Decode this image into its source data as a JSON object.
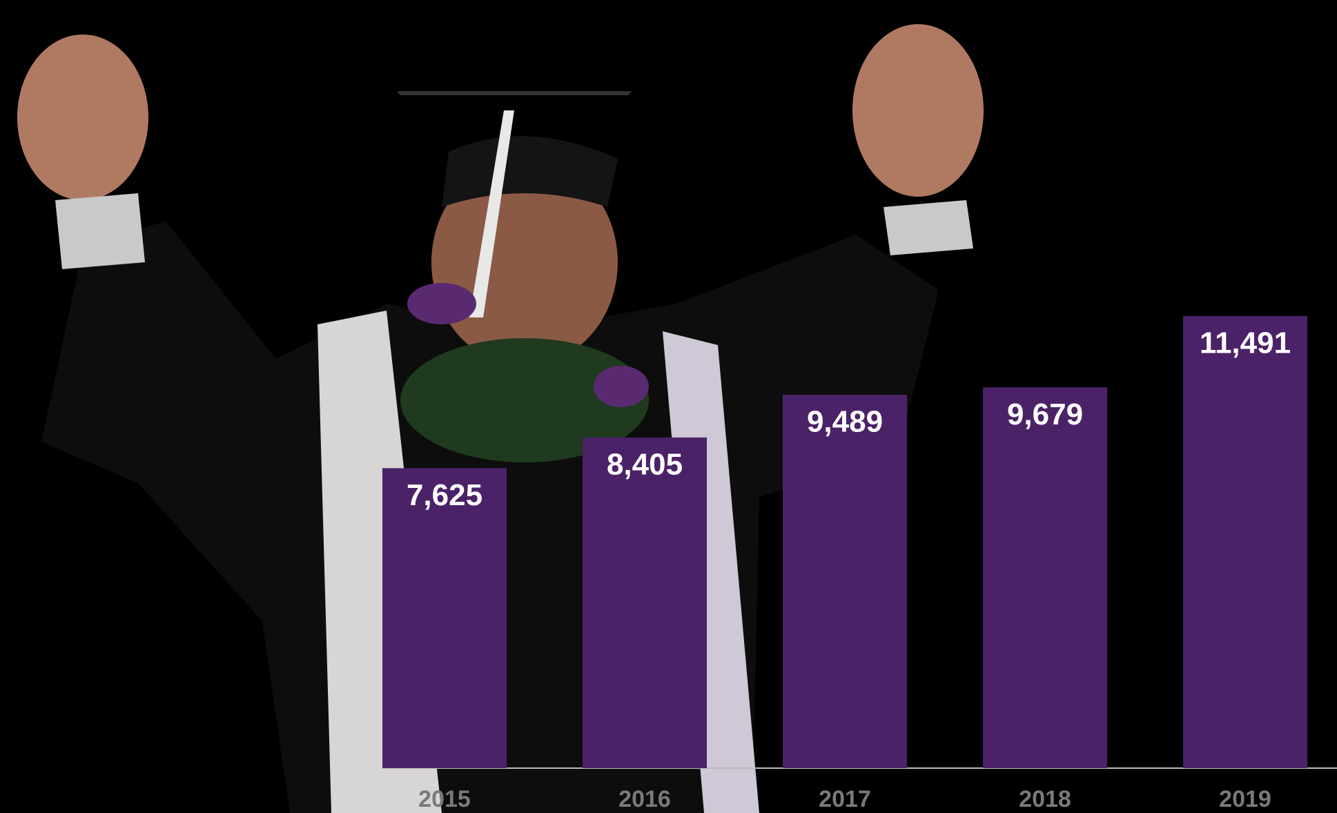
{
  "chart_data": {
    "type": "bar",
    "categories": [
      "2015",
      "2016",
      "2017",
      "2018",
      "2019"
    ],
    "values": [
      7625,
      8405,
      9489,
      9679,
      11491
    ],
    "value_labels": [
      "7,625",
      "8,405",
      "9,489",
      "9,679",
      "11,491"
    ],
    "color": "#4b2268"
  }
}
